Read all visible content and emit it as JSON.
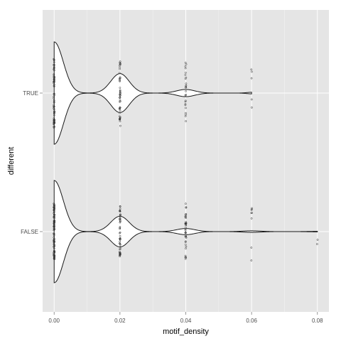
{
  "chart_data": {
    "type": "violin",
    "orientation": "horizontal",
    "title": "",
    "xlabel": "motif_density",
    "ylabel": "different",
    "xlim": [
      -0.0035,
      0.0835
    ],
    "x_ticks": [
      0.0,
      0.02,
      0.04,
      0.06,
      0.08
    ],
    "x_tick_labels": [
      "0.00",
      "0.02",
      "0.04",
      "0.06",
      "0.08"
    ],
    "categories": [
      "FALSE",
      "TRUE"
    ],
    "grid": true,
    "colors": {
      "panel": "#e5e5e5",
      "grid": "#ffffff",
      "violin_fill": "#ffffff",
      "outline": "#1a1a1a",
      "points": "#333333"
    },
    "series": [
      {
        "category": "TRUE",
        "peaks": [
          {
            "x": 0.0,
            "rel_width": 1.0,
            "sd": 0.0028
          },
          {
            "x": 0.02,
            "rel_width": 0.38,
            "sd": 0.0028
          },
          {
            "x": 0.04,
            "rel_width": 0.07,
            "sd": 0.0028
          },
          {
            "x": 0.06,
            "rel_width": 0.015,
            "sd": 0.0015
          }
        ],
        "range": [
          0.0,
          0.06
        ],
        "points": [
          {
            "x": 0.0,
            "spread": 0.68,
            "count": 70
          },
          {
            "x": 0.02,
            "spread": 0.65,
            "count": 50
          },
          {
            "x": 0.04,
            "spread": 0.6,
            "count": 25
          },
          {
            "x": 0.06,
            "spread": 0.5,
            "count": 5
          }
        ]
      },
      {
        "category": "FALSE",
        "peaks": [
          {
            "x": 0.0,
            "rel_width": 1.0,
            "sd": 0.0028
          },
          {
            "x": 0.02,
            "rel_width": 0.3,
            "sd": 0.0028
          },
          {
            "x": 0.04,
            "rel_width": 0.06,
            "sd": 0.0028
          },
          {
            "x": 0.06,
            "rel_width": 0.015,
            "sd": 0.0028
          },
          {
            "x": 0.08,
            "rel_width": 0.005,
            "sd": 0.0028
          }
        ],
        "range": [
          0.0,
          0.08
        ],
        "points": [
          {
            "x": 0.0,
            "spread": 0.55,
            "count": 100
          },
          {
            "x": 0.02,
            "spread": 0.5,
            "count": 50
          },
          {
            "x": 0.04,
            "spread": 0.55,
            "count": 40
          },
          {
            "x": 0.06,
            "spread": 0.6,
            "count": 8
          },
          {
            "x": 0.08,
            "spread": 0.4,
            "count": 2
          }
        ]
      }
    ]
  }
}
